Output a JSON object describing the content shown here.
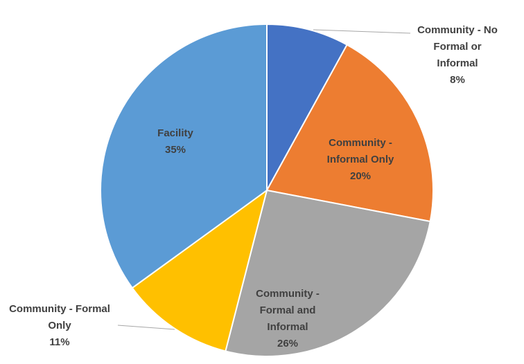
{
  "chart_data": {
    "type": "pie",
    "title": "",
    "start_angle_deg": 0,
    "direction": "clockwise",
    "slices": [
      {
        "id": "community-no-formal-or-informal",
        "label_lines": [
          "Community - No",
          "Formal or",
          "Informal"
        ],
        "value": 8,
        "value_label": "8%",
        "color": "#4472C4",
        "label_position": "outside"
      },
      {
        "id": "community-informal-only",
        "label_lines": [
          "Community -",
          "Informal Only"
        ],
        "value": 20,
        "value_label": "20%",
        "color": "#ED7D31",
        "label_position": "inside"
      },
      {
        "id": "community-formal-and-informal",
        "label_lines": [
          "Community -",
          "Formal and",
          "Informal"
        ],
        "value": 26,
        "value_label": "26%",
        "color": "#A5A5A5",
        "label_position": "inside"
      },
      {
        "id": "community-formal-only",
        "label_lines": [
          "Community - Formal",
          "Only"
        ],
        "value": 11,
        "value_label": "11%",
        "color": "#FFC000",
        "label_position": "outside"
      },
      {
        "id": "facility",
        "label_lines": [
          "Facility"
        ],
        "value": 35,
        "value_label": "35%",
        "color": "#5B9BD5",
        "label_position": "inside"
      }
    ]
  }
}
